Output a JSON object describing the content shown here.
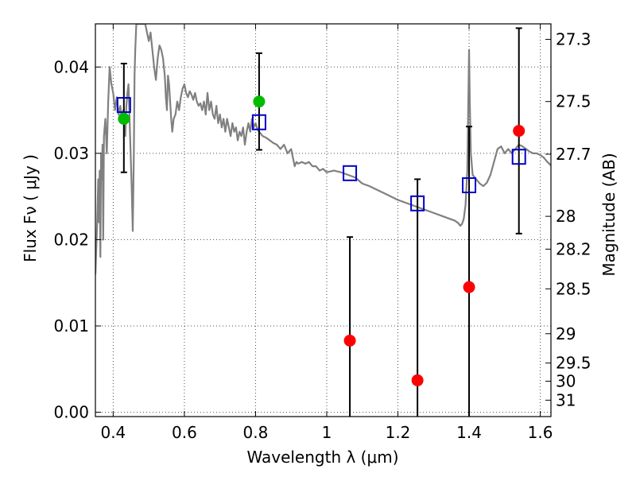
{
  "chart_data": {
    "type": "scatter",
    "xlabel": "Wavelength  λ (μm)",
    "ylabel_left": "Flux  Fν  ( μJy )",
    "ylabel_right": "Magnitude (AB)",
    "xlim": [
      0.35,
      1.63
    ],
    "ylim": [
      -0.0005,
      0.045
    ],
    "grid": true,
    "x_ticks": [
      0.4,
      0.6,
      0.8,
      1.0,
      1.2,
      1.4,
      1.6
    ],
    "x_tick_labels": [
      "0.4",
      "0.6",
      "0.8",
      "1",
      "1.2",
      "1.4",
      "1.6"
    ],
    "y_ticks": [
      0.0,
      0.01,
      0.02,
      0.03,
      0.04
    ],
    "y_tick_labels": [
      "0.00",
      "0.01",
      "0.02",
      "0.03",
      "0.04"
    ],
    "right_ticks": [
      {
        "label": "27.3",
        "flux": 0.0432
      },
      {
        "label": "27.5",
        "flux": 0.036
      },
      {
        "label": "27.7",
        "flux": 0.0299
      },
      {
        "label": "28",
        "flux": 0.0227
      },
      {
        "label": "28.2",
        "flux": 0.0189
      },
      {
        "label": "28.5",
        "flux": 0.0143
      },
      {
        "label": "29",
        "flux": 0.0091
      },
      {
        "label": "29.5",
        "flux": 0.0057
      },
      {
        "label": "30",
        "flux": 0.0036
      },
      {
        "label": "31",
        "flux": 0.0014
      }
    ],
    "series": [
      {
        "kind": "line",
        "color": "#808080",
        "points": [
          [
            0.35,
            0.016
          ],
          [
            0.355,
            0.022
          ],
          [
            0.358,
            0.027
          ],
          [
            0.36,
            0.022
          ],
          [
            0.362,
            0.028
          ],
          [
            0.364,
            0.018
          ],
          [
            0.366,
            0.03
          ],
          [
            0.368,
            0.027
          ],
          [
            0.37,
            0.031
          ],
          [
            0.372,
            0.02
          ],
          [
            0.374,
            0.032
          ],
          [
            0.378,
            0.034
          ],
          [
            0.382,
            0.03
          ],
          [
            0.386,
            0.036
          ],
          [
            0.39,
            0.04
          ],
          [
            0.395,
            0.038
          ],
          [
            0.4,
            0.037
          ],
          [
            0.405,
            0.035
          ],
          [
            0.41,
            0.0365
          ],
          [
            0.415,
            0.0345
          ],
          [
            0.42,
            0.0355
          ],
          [
            0.425,
            0.0335
          ],
          [
            0.428,
            0.035
          ],
          [
            0.431,
            0.034
          ],
          [
            0.434,
            0.032
          ],
          [
            0.437,
            0.0355
          ],
          [
            0.44,
            0.037
          ],
          [
            0.443,
            0.038
          ],
          [
            0.446,
            0.034
          ],
          [
            0.449,
            0.03
          ],
          [
            0.452,
            0.026
          ],
          [
            0.455,
            0.021
          ],
          [
            0.458,
            0.03
          ],
          [
            0.46,
            0.039
          ],
          [
            0.462,
            0.042
          ],
          [
            0.465,
            0.045
          ],
          [
            0.47,
            0.045
          ],
          [
            0.48,
            0.045
          ],
          [
            0.49,
            0.045
          ],
          [
            0.5,
            0.043
          ],
          [
            0.505,
            0.044
          ],
          [
            0.51,
            0.042
          ],
          [
            0.515,
            0.04
          ],
          [
            0.52,
            0.0385
          ],
          [
            0.525,
            0.041
          ],
          [
            0.53,
            0.0425
          ],
          [
            0.535,
            0.042
          ],
          [
            0.54,
            0.041
          ],
          [
            0.545,
            0.039
          ],
          [
            0.548,
            0.0365
          ],
          [
            0.551,
            0.035
          ],
          [
            0.554,
            0.039
          ],
          [
            0.557,
            0.038
          ],
          [
            0.56,
            0.036
          ],
          [
            0.563,
            0.034
          ],
          [
            0.566,
            0.0325
          ],
          [
            0.57,
            0.034
          ],
          [
            0.575,
            0.0345
          ],
          [
            0.58,
            0.036
          ],
          [
            0.585,
            0.035
          ],
          [
            0.59,
            0.0365
          ],
          [
            0.595,
            0.0375
          ],
          [
            0.6,
            0.038
          ],
          [
            0.605,
            0.037
          ],
          [
            0.61,
            0.0365
          ],
          [
            0.615,
            0.0372
          ],
          [
            0.62,
            0.0368
          ],
          [
            0.625,
            0.0362
          ],
          [
            0.63,
            0.037
          ],
          [
            0.635,
            0.036
          ],
          [
            0.64,
            0.0355
          ],
          [
            0.645,
            0.0358
          ],
          [
            0.65,
            0.035
          ],
          [
            0.655,
            0.036
          ],
          [
            0.66,
            0.0345
          ],
          [
            0.665,
            0.037
          ],
          [
            0.67,
            0.035
          ],
          [
            0.675,
            0.036
          ],
          [
            0.68,
            0.0345
          ],
          [
            0.685,
            0.034
          ],
          [
            0.69,
            0.0355
          ],
          [
            0.695,
            0.0335
          ],
          [
            0.7,
            0.0345
          ],
          [
            0.705,
            0.033
          ],
          [
            0.71,
            0.034
          ],
          [
            0.715,
            0.0325
          ],
          [
            0.72,
            0.034
          ],
          [
            0.725,
            0.033
          ],
          [
            0.73,
            0.032
          ],
          [
            0.735,
            0.0335
          ],
          [
            0.74,
            0.0325
          ],
          [
            0.745,
            0.033
          ],
          [
            0.75,
            0.0315
          ],
          [
            0.755,
            0.0325
          ],
          [
            0.76,
            0.032
          ],
          [
            0.765,
            0.033
          ],
          [
            0.77,
            0.031
          ],
          [
            0.775,
            0.0325
          ],
          [
            0.78,
            0.0335
          ],
          [
            0.785,
            0.0325
          ],
          [
            0.79,
            0.034
          ],
          [
            0.795,
            0.033
          ],
          [
            0.8,
            0.0335
          ],
          [
            0.805,
            0.0328
          ],
          [
            0.81,
            0.0325
          ],
          [
            0.82,
            0.032
          ],
          [
            0.83,
            0.0318
          ],
          [
            0.84,
            0.0315
          ],
          [
            0.85,
            0.0312
          ],
          [
            0.86,
            0.031
          ],
          [
            0.87,
            0.0305
          ],
          [
            0.88,
            0.031
          ],
          [
            0.89,
            0.03
          ],
          [
            0.9,
            0.0305
          ],
          [
            0.905,
            0.0295
          ],
          [
            0.91,
            0.0285
          ],
          [
            0.915,
            0.029
          ],
          [
            0.92,
            0.0288
          ],
          [
            0.93,
            0.029
          ],
          [
            0.94,
            0.0288
          ],
          [
            0.95,
            0.029
          ],
          [
            0.96,
            0.0285
          ],
          [
            0.97,
            0.0285
          ],
          [
            0.98,
            0.028
          ],
          [
            0.99,
            0.0282
          ],
          [
            1.0,
            0.0278
          ],
          [
            1.02,
            0.028
          ],
          [
            1.04,
            0.0278
          ],
          [
            1.06,
            0.0275
          ],
          [
            1.08,
            0.0272
          ],
          [
            1.1,
            0.0265
          ],
          [
            1.12,
            0.0262
          ],
          [
            1.14,
            0.0258
          ],
          [
            1.16,
            0.0254
          ],
          [
            1.18,
            0.025
          ],
          [
            1.2,
            0.0246
          ],
          [
            1.22,
            0.0243
          ],
          [
            1.24,
            0.024
          ],
          [
            1.26,
            0.0237
          ],
          [
            1.28,
            0.0234
          ],
          [
            1.3,
            0.0231
          ],
          [
            1.32,
            0.0228
          ],
          [
            1.34,
            0.0225
          ],
          [
            1.36,
            0.0222
          ],
          [
            1.37,
            0.0219
          ],
          [
            1.375,
            0.0216
          ],
          [
            1.38,
            0.0218
          ],
          [
            1.385,
            0.0224
          ],
          [
            1.39,
            0.024
          ],
          [
            1.395,
            0.028
          ],
          [
            1.4,
            0.042
          ],
          [
            1.402,
            0.036
          ],
          [
            1.405,
            0.03
          ],
          [
            1.41,
            0.0275
          ],
          [
            1.42,
            0.027
          ],
          [
            1.43,
            0.0265
          ],
          [
            1.44,
            0.0262
          ],
          [
            1.45,
            0.0266
          ],
          [
            1.46,
            0.0275
          ],
          [
            1.47,
            0.029
          ],
          [
            1.48,
            0.0305
          ],
          [
            1.49,
            0.0308
          ],
          [
            1.5,
            0.03
          ],
          [
            1.51,
            0.0305
          ],
          [
            1.52,
            0.03
          ],
          [
            1.53,
            0.0305
          ],
          [
            1.54,
            0.031
          ],
          [
            1.55,
            0.0308
          ],
          [
            1.56,
            0.0305
          ],
          [
            1.57,
            0.0302
          ],
          [
            1.58,
            0.03
          ],
          [
            1.59,
            0.03
          ],
          [
            1.6,
            0.0298
          ],
          [
            1.61,
            0.0295
          ],
          [
            1.62,
            0.029
          ],
          [
            1.63,
            0.0286
          ]
        ]
      },
      {
        "kind": "open-square",
        "color": "#0000cc",
        "points": [
          [
            0.43,
            0.0356
          ],
          [
            0.81,
            0.0336
          ],
          [
            1.065,
            0.0277
          ],
          [
            1.255,
            0.0242
          ],
          [
            1.4,
            0.0263
          ],
          [
            1.54,
            0.0296
          ]
        ]
      },
      {
        "kind": "filled-circle",
        "color": "#00bb00",
        "points": [
          [
            0.43,
            0.034
          ],
          [
            0.81,
            0.036
          ]
        ]
      },
      {
        "kind": "filled-circle",
        "color": "#ff0000",
        "points": [
          [
            1.065,
            0.0083
          ],
          [
            1.255,
            0.0037
          ],
          [
            1.4,
            0.0145
          ],
          [
            1.54,
            0.0326
          ]
        ]
      }
    ],
    "error_bars": [
      {
        "x": 0.43,
        "low": 0.0278,
        "high": 0.0404
      },
      {
        "x": 0.81,
        "low": 0.0304,
        "high": 0.0416
      },
      {
        "x": 1.065,
        "low": -0.0005,
        "high": 0.0203
      },
      {
        "x": 1.255,
        "low": -0.0005,
        "high": 0.027
      },
      {
        "x": 1.4,
        "low": -0.0005,
        "high": 0.0331
      },
      {
        "x": 1.54,
        "low": 0.0207,
        "high": 0.0445
      }
    ]
  }
}
